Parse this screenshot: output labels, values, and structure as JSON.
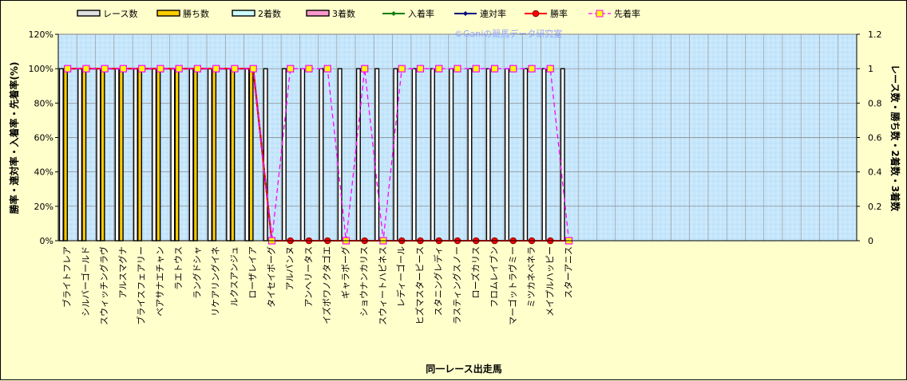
{
  "chart_data": {
    "type": "bar",
    "watermark": "©Ganiの競馬データ研究室",
    "xlabel": "同一レース出走馬",
    "ylabel_left": "勝率・連対率・入着率・先着率(%)",
    "ylabel_right": "レース数・勝ち数・2着数・3着数",
    "left_ticks": [
      "0%",
      "20%",
      "40%",
      "60%",
      "80%",
      "100%",
      "120%"
    ],
    "right_ticks": [
      "0",
      "0.2",
      "0.4",
      "0.6",
      "0.8",
      "1",
      "1.2"
    ],
    "ylim_left": [
      0,
      120
    ],
    "ylim_right": [
      0,
      1.2
    ],
    "legend_position": "top",
    "slots": 43,
    "categories": [
      "ブライトフレア",
      "シルバーゴールド",
      "スウィッチングラヴ",
      "アルスマグナ",
      "ブライスフェアリー",
      "ベアサナエチャン",
      "ラエトウス",
      "ラングドシャ",
      "リケアリングイネ",
      "ルクスアンジュ",
      "ローザレイア",
      "タイセイボーグ",
      "アルバンヌ",
      "アンヘリータス",
      "イズボワノクタゴエ",
      "ギャラボーグ",
      "ショウナンカリス",
      "スウィートハピネス",
      "レディーゴール",
      "ヒズマスターピース",
      "スタニングレディ",
      "ラスティングスノー",
      "ローズカリス",
      "フロムレイブン",
      "マーゴットラヴミー",
      "ミツカネベネラ",
      "メイプルハッピー",
      "スターアニス"
    ],
    "series": [
      {
        "name": "レース数",
        "axis": "right",
        "color": "#ffffff",
        "values": [
          1,
          1,
          1,
          1,
          1,
          1,
          1,
          1,
          1,
          1,
          1,
          1,
          1,
          1,
          1,
          1,
          1,
          1,
          1,
          1,
          1,
          1,
          1,
          1,
          1,
          1,
          1,
          1
        ]
      },
      {
        "name": "勝ち数",
        "axis": "right",
        "color": "#ffcc00",
        "values": [
          1,
          1,
          1,
          1,
          1,
          1,
          1,
          1,
          1,
          1,
          1,
          0,
          0,
          0,
          0,
          0,
          0,
          0,
          0,
          0,
          0,
          0,
          0,
          0,
          0,
          0,
          0,
          0
        ]
      },
      {
        "name": "2着数",
        "axis": "right",
        "color": "#ccffff",
        "values": [
          0,
          0,
          0,
          0,
          0,
          0,
          0,
          0,
          0,
          0,
          0,
          0,
          0,
          0,
          0,
          0,
          0,
          0,
          0,
          0,
          0,
          0,
          0,
          0,
          0,
          0,
          0,
          0
        ]
      },
      {
        "name": "3着数",
        "axis": "right",
        "color": "#ff99cc",
        "values": [
          0,
          0,
          0,
          0,
          0,
          0,
          0,
          0,
          0,
          0,
          0,
          0,
          0,
          0,
          0,
          0,
          0,
          0,
          0,
          0,
          0,
          0,
          0,
          0,
          0,
          0,
          0,
          0
        ]
      },
      {
        "name": "入着率",
        "axis": "left",
        "color": "#008000",
        "values": [
          100,
          100,
          100,
          100,
          100,
          100,
          100,
          100,
          100,
          100,
          100,
          0,
          0,
          0,
          0,
          0,
          0,
          0,
          0,
          0,
          0,
          0,
          0,
          0,
          0,
          0,
          0,
          0
        ]
      },
      {
        "name": "連対率",
        "axis": "left",
        "color": "#000080",
        "values": [
          100,
          100,
          100,
          100,
          100,
          100,
          100,
          100,
          100,
          100,
          100,
          0,
          0,
          0,
          0,
          0,
          0,
          0,
          0,
          0,
          0,
          0,
          0,
          0,
          0,
          0,
          0,
          0
        ]
      },
      {
        "name": "勝率",
        "axis": "left",
        "color": "#ff0000",
        "values": [
          100,
          100,
          100,
          100,
          100,
          100,
          100,
          100,
          100,
          100,
          100,
          0,
          0,
          0,
          0,
          0,
          0,
          0,
          0,
          0,
          0,
          0,
          0,
          0,
          0,
          0,
          0,
          0
        ]
      },
      {
        "name": "先着率",
        "axis": "left",
        "color": "#ff00ff",
        "values": [
          100,
          100,
          100,
          100,
          100,
          100,
          100,
          100,
          100,
          100,
          100,
          0,
          100,
          100,
          100,
          0,
          100,
          0,
          100,
          100,
          100,
          100,
          100,
          100,
          100,
          100,
          100,
          0
        ]
      }
    ]
  }
}
